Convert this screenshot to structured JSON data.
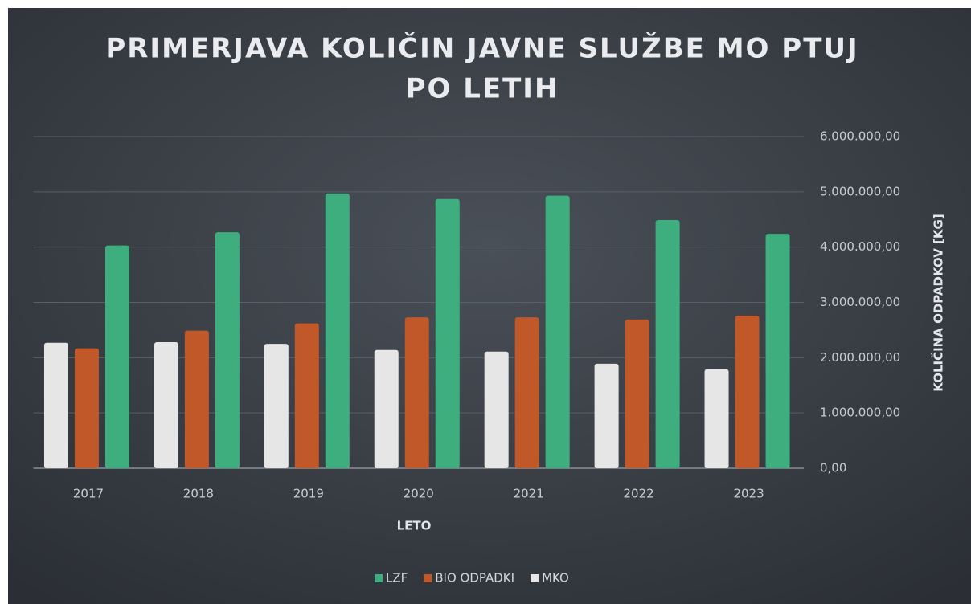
{
  "chart_data": {
    "type": "bar",
    "title": [
      "PRIMERJAVA KOLIČIN JAVNE SLUŽBE MO PTUJ",
      "PO LETIH"
    ],
    "x_label": "LETO",
    "y_label": "KOLIČINA ODPADKOV [KG]",
    "categories": [
      "2017",
      "2018",
      "2019",
      "2020",
      "2021",
      "2022",
      "2023"
    ],
    "series": [
      {
        "name": "LZF",
        "color": "#3fae7f",
        "values": [
          4030000,
          4270000,
          4970000,
          4870000,
          4930000,
          4490000,
          4240000
        ]
      },
      {
        "name": "BIO ODPADKI",
        "color": "#c0582a",
        "values": [
          2170000,
          2490000,
          2620000,
          2730000,
          2730000,
          2690000,
          2760000
        ]
      },
      {
        "name": "MKO",
        "color": "#e6e6e6",
        "values": [
          2270000,
          2280000,
          2250000,
          2140000,
          2110000,
          1890000,
          1790000
        ]
      }
    ],
    "ylim": [
      0,
      6000000
    ],
    "yticks": [
      {
        "value": 0,
        "label": "0,00"
      },
      {
        "value": 1000000,
        "label": "1.000.000,00"
      },
      {
        "value": 2000000,
        "label": "2.000.000,00"
      },
      {
        "value": 3000000,
        "label": "3.000.000,00"
      },
      {
        "value": 4000000,
        "label": "4.000.000,00"
      },
      {
        "value": 5000000,
        "label": "5.000.000,00"
      },
      {
        "value": 6000000,
        "label": "6.000.000,00"
      }
    ],
    "grid": true,
    "y_axis_side": "right",
    "legend": "bottom"
  }
}
